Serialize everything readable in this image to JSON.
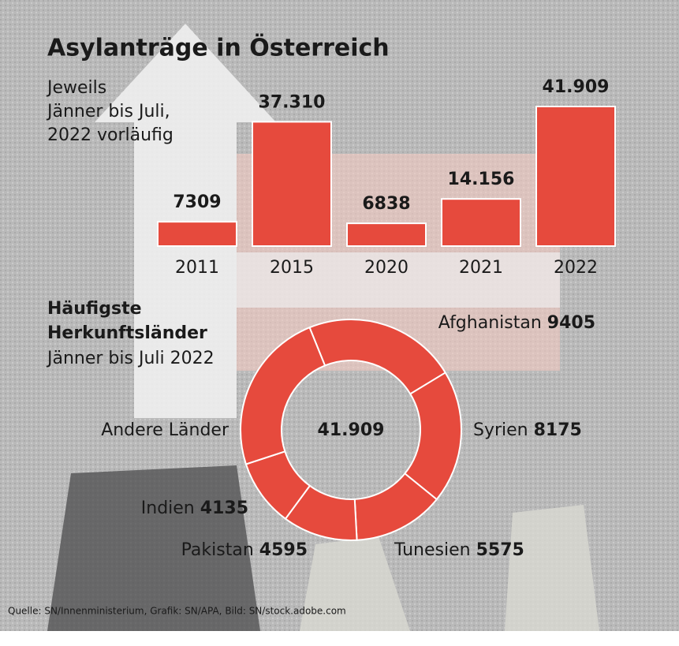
{
  "chart_data": [
    {
      "type": "bar",
      "title": "Asylanträge in Österreich",
      "subtitle": [
        "Jeweils",
        "Jänner bis Juli,",
        "2022 vorläufig"
      ],
      "categories": [
        "2011",
        "2015",
        "2020",
        "2021",
        "2022"
      ],
      "values": [
        7309,
        37310,
        6838,
        14156,
        41909
      ],
      "value_labels": [
        "7309",
        "37.310",
        "6838",
        "14.156",
        "41.909"
      ],
      "color": "#e64a3d"
    },
    {
      "type": "donut",
      "title": [
        "Häufigste",
        "Herkunftsländer"
      ],
      "subtitle": "Jänner bis Juli 2022",
      "categories": [
        "Afghanistan",
        "Syrien",
        "Tunesien",
        "Pakistan",
        "Indien",
        "Andere Länder"
      ],
      "values": [
        9405,
        8175,
        5575,
        4595,
        4135,
        10024
      ],
      "value_labels": [
        "9405",
        "8175",
        "5575",
        "4595",
        "4135",
        null
      ],
      "total": 41909,
      "total_label": "41.909",
      "color": "#e64a3d"
    }
  ],
  "source": "Quelle: SN/Innenministerium, Grafik: SN/APA, Bild: SN/stock.adobe.com"
}
